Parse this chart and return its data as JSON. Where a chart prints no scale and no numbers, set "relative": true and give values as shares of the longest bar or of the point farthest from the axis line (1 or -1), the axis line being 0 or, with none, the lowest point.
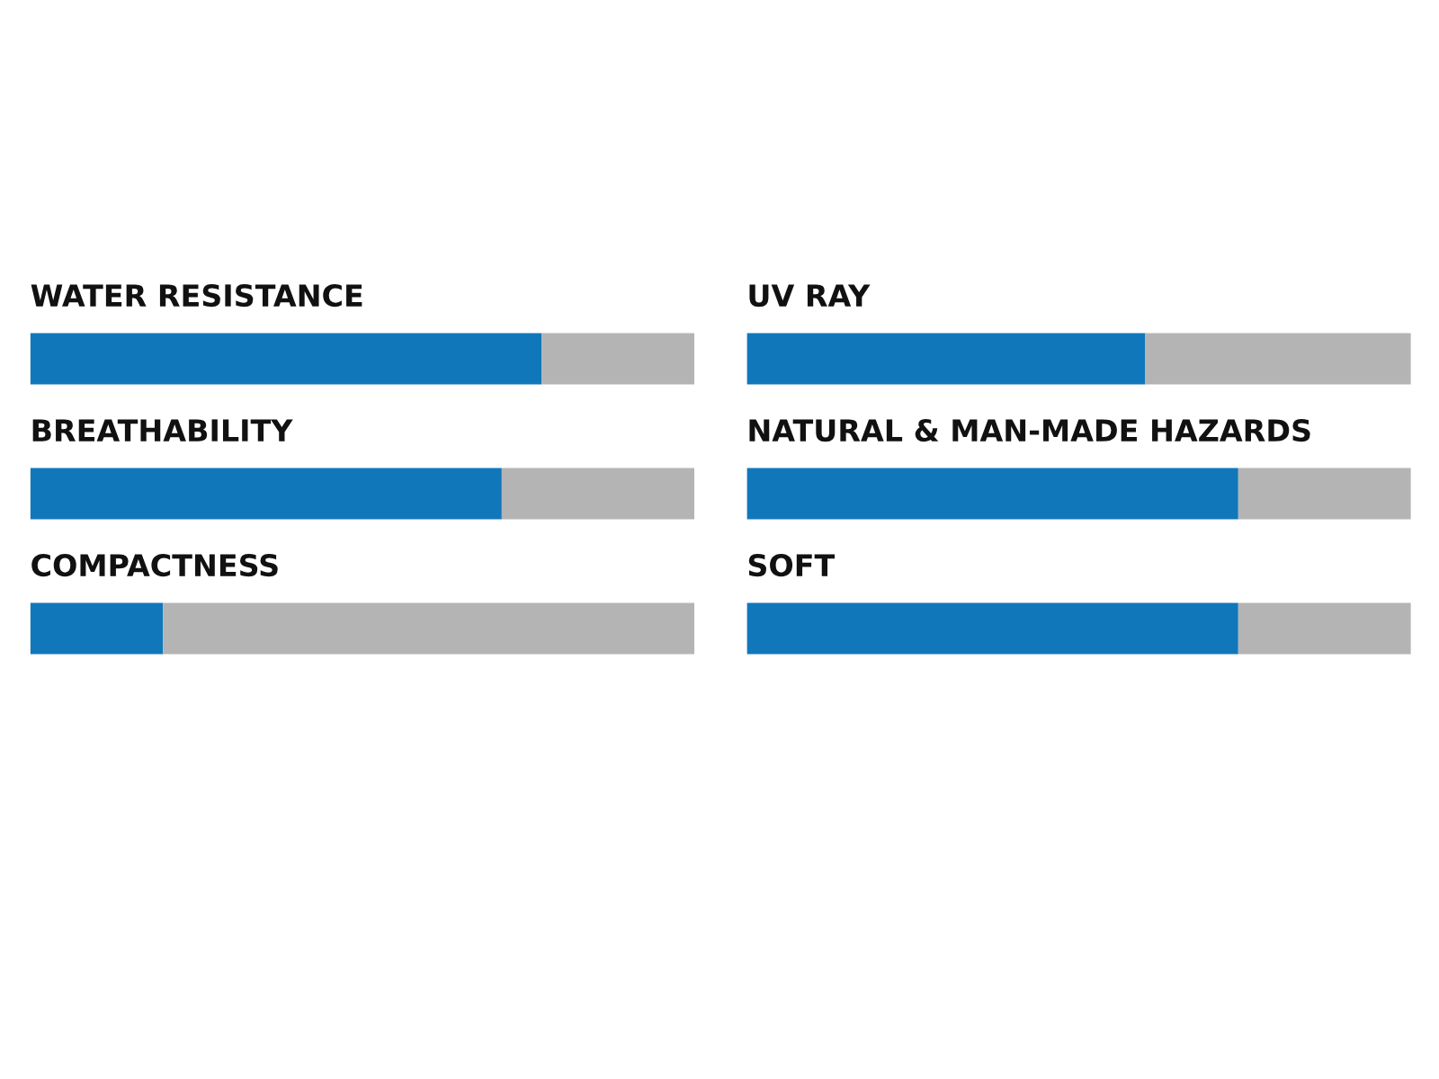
{
  "chart_data": [
    {
      "type": "bar",
      "orientation": "horizontal",
      "stacked": true,
      "relative": true,
      "categories": [
        "WATER RESISTANCE",
        "BREATHABILITY",
        "COMPACTNESS"
      ],
      "series": [
        {
          "color": "#1177bb",
          "values": [
            0.77,
            0.71,
            0.2
          ]
        },
        {
          "color": "#b4b4b4",
          "values": [
            0.23,
            0.29,
            0.8
          ]
        }
      ]
    },
    {
      "type": "bar",
      "orientation": "horizontal",
      "stacked": true,
      "relative": true,
      "categories": [
        "UV RAY",
        "NATURAL & MAN-MADE HAZARDS",
        "SOFT"
      ],
      "series": [
        {
          "color": "#1177bb",
          "values": [
            0.6,
            0.74,
            0.74
          ]
        },
        {
          "color": "#b4b4b4",
          "values": [
            0.4,
            0.26,
            0.26
          ]
        }
      ]
    }
  ]
}
